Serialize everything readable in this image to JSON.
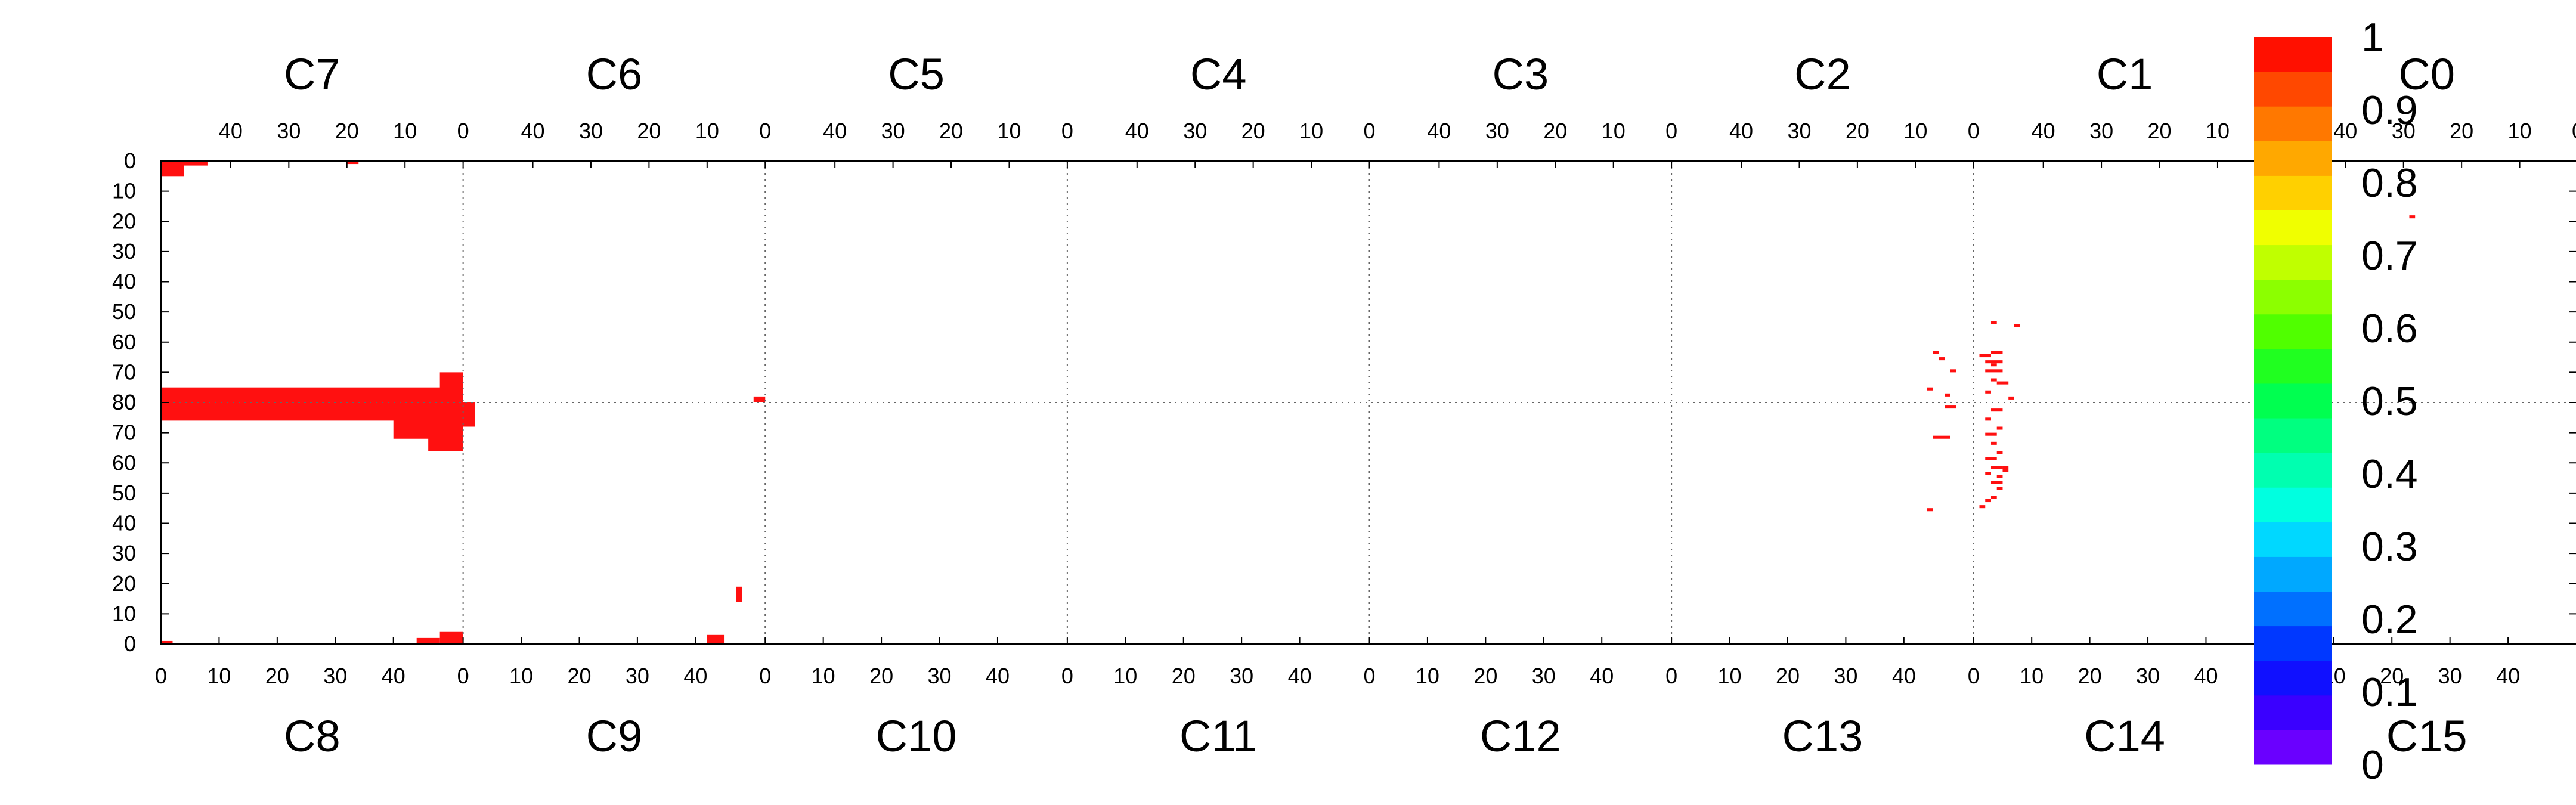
{
  "chart_data": {
    "type": "heatmap",
    "title": "",
    "top_chip_labels": [
      "C7",
      "C6",
      "C5",
      "C4",
      "C3",
      "C2",
      "C1",
      "C0"
    ],
    "bottom_chip_labels": [
      "C8",
      "C9",
      "C10",
      "C11",
      "C12",
      "C13",
      "C14",
      "C15"
    ],
    "top_column_tick_labels": [
      "40",
      "30",
      "20",
      "10",
      "0"
    ],
    "bottom_column_tick_labels": [
      "0",
      "10",
      "20",
      "30",
      "40"
    ],
    "top_row_tick_labels": [
      "0",
      "10",
      "20",
      "30",
      "40",
      "50",
      "60",
      "70",
      "80"
    ],
    "bottom_row_tick_labels": [
      "80",
      "70",
      "60",
      "50",
      "40",
      "30",
      "20",
      "10",
      "0"
    ],
    "colorbar": {
      "tick_labels": [
        "1",
        "0.9",
        "0.8",
        "0.7",
        "0.6",
        "0.5",
        "0.4",
        "0.3",
        "0.2",
        "0.1",
        "0"
      ],
      "colors": [
        "#6a00ff",
        "#3a00ff",
        "#1010ff",
        "#0038ff",
        "#0070ff",
        "#00a8ff",
        "#00d8ff",
        "#00ffe0",
        "#00ffb0",
        "#00ff80",
        "#00ff50",
        "#20ff20",
        "#50ff00",
        "#8cff00",
        "#c0ff00",
        "#f0ff00",
        "#ffd000",
        "#ffa800",
        "#ff7800",
        "#ff4800",
        "#ff1000"
      ]
    },
    "cell_color": "#ff1010",
    "hit_rects": [
      {
        "chip": "C7",
        "col": [
          48,
          52
        ],
        "row": [
          0,
          5
        ]
      },
      {
        "chip": "C7",
        "col": [
          44,
          48
        ],
        "row": [
          0,
          1.5
        ]
      },
      {
        "chip": "C7",
        "col": [
          18,
          20
        ],
        "row": [
          0,
          1
        ]
      },
      {
        "chip": "C7",
        "col": [
          0,
          52
        ],
        "row": [
          75,
          80
        ]
      },
      {
        "chip": "C7",
        "col": [
          0,
          4
        ],
        "row": [
          70,
          80
        ]
      },
      {
        "chip": "C8",
        "col": [
          0,
          52
        ],
        "row": [
          74,
          80
        ]
      },
      {
        "chip": "C8",
        "col": [
          40,
          52
        ],
        "row": [
          68,
          80
        ]
      },
      {
        "chip": "C8",
        "col": [
          46,
          52
        ],
        "row": [
          64,
          80
        ]
      },
      {
        "chip": "C8",
        "col": [
          0,
          2
        ],
        "row": [
          0,
          1
        ]
      },
      {
        "chip": "C8",
        "col": [
          44,
          48
        ],
        "row": [
          0,
          2
        ]
      },
      {
        "chip": "C8",
        "col": [
          48,
          52
        ],
        "row": [
          0,
          4
        ]
      },
      {
        "chip": "C6",
        "col": [
          0,
          2
        ],
        "row": [
          78,
          80
        ]
      },
      {
        "chip": "C9",
        "col": [
          0,
          2
        ],
        "row": [
          72,
          80
        ]
      },
      {
        "chip": "C9",
        "col": [
          42,
          45
        ],
        "row": [
          0,
          3
        ]
      },
      {
        "chip": "C9",
        "col": [
          47,
          48
        ],
        "row": [
          14,
          19
        ]
      },
      {
        "chip": "C0",
        "col": [
          49,
          51
        ],
        "row": [
          5,
          6
        ]
      },
      {
        "chip": "C0",
        "col": [
          28,
          29
        ],
        "row": [
          18,
          19
        ]
      },
      {
        "chip": "C13",
        "col": [
          44,
          45
        ],
        "row": [
          44,
          45
        ]
      },
      {
        "chip": "C13",
        "col": [
          45,
          48
        ],
        "row": [
          68,
          69
        ]
      },
      {
        "chip": "C13",
        "col": [
          47,
          49
        ],
        "row": [
          78,
          79
        ]
      },
      {
        "chip": "C2",
        "col": [
          6,
          7
        ],
        "row": [
          63,
          64
        ]
      },
      {
        "chip": "C2",
        "col": [
          5,
          6
        ],
        "row": [
          65,
          66
        ]
      },
      {
        "chip": "C2",
        "col": [
          3,
          4
        ],
        "row": [
          69,
          70
        ]
      },
      {
        "chip": "C2",
        "col": [
          7,
          8
        ],
        "row": [
          75,
          76
        ]
      },
      {
        "chip": "C2",
        "col": [
          4,
          5
        ],
        "row": [
          77,
          78
        ]
      },
      {
        "chip": "C1",
        "col": [
          48,
          49
        ],
        "row": [
          53,
          54
        ]
      },
      {
        "chip": "C1",
        "col": [
          44,
          45
        ],
        "row": [
          54,
          55
        ]
      },
      {
        "chip": "C1",
        "col": [
          47,
          49
        ],
        "row": [
          63,
          64
        ]
      },
      {
        "chip": "C1",
        "col": [
          49,
          51
        ],
        "row": [
          64,
          65
        ]
      },
      {
        "chip": "C1",
        "col": [
          47,
          50
        ],
        "row": [
          66,
          67
        ]
      },
      {
        "chip": "C1",
        "col": [
          48,
          49
        ],
        "row": [
          67,
          68
        ]
      },
      {
        "chip": "C1",
        "col": [
          47,
          50
        ],
        "row": [
          69,
          70
        ]
      },
      {
        "chip": "C1",
        "col": [
          48,
          49
        ],
        "row": [
          72,
          73
        ]
      },
      {
        "chip": "C1",
        "col": [
          46,
          48
        ],
        "row": [
          73,
          74
        ]
      },
      {
        "chip": "C1",
        "col": [
          49,
          50
        ],
        "row": [
          76,
          77
        ]
      },
      {
        "chip": "C1",
        "col": [
          45,
          46
        ],
        "row": [
          78,
          79
        ]
      },
      {
        "chip": "C14",
        "col": [
          3,
          5
        ],
        "row": [
          77,
          78
        ]
      },
      {
        "chip": "C14",
        "col": [
          2,
          3
        ],
        "row": [
          74,
          75
        ]
      },
      {
        "chip": "C14",
        "col": [
          4,
          5
        ],
        "row": [
          71,
          72
        ]
      },
      {
        "chip": "C14",
        "col": [
          2,
          4
        ],
        "row": [
          69,
          70
        ]
      },
      {
        "chip": "C14",
        "col": [
          3,
          4
        ],
        "row": [
          66,
          67
        ]
      },
      {
        "chip": "C14",
        "col": [
          4,
          5
        ],
        "row": [
          63,
          64
        ]
      },
      {
        "chip": "C14",
        "col": [
          2,
          4
        ],
        "row": [
          61,
          62
        ]
      },
      {
        "chip": "C14",
        "col": [
          3,
          5
        ],
        "row": [
          58,
          59
        ]
      },
      {
        "chip": "C14",
        "col": [
          5,
          6
        ],
        "row": [
          57,
          59
        ]
      },
      {
        "chip": "C14",
        "col": [
          2,
          3
        ],
        "row": [
          56,
          57
        ]
      },
      {
        "chip": "C14",
        "col": [
          4,
          5
        ],
        "row": [
          55,
          56
        ]
      },
      {
        "chip": "C14",
        "col": [
          3,
          5
        ],
        "row": [
          53,
          54
        ]
      },
      {
        "chip": "C14",
        "col": [
          4,
          5
        ],
        "row": [
          51,
          52
        ]
      },
      {
        "chip": "C14",
        "col": [
          3,
          4
        ],
        "row": [
          48,
          49
        ]
      },
      {
        "chip": "C14",
        "col": [
          1,
          2
        ],
        "row": [
          45,
          46
        ]
      },
      {
        "chip": "C14",
        "col": [
          2,
          3
        ],
        "row": [
          47,
          48
        ]
      }
    ]
  }
}
